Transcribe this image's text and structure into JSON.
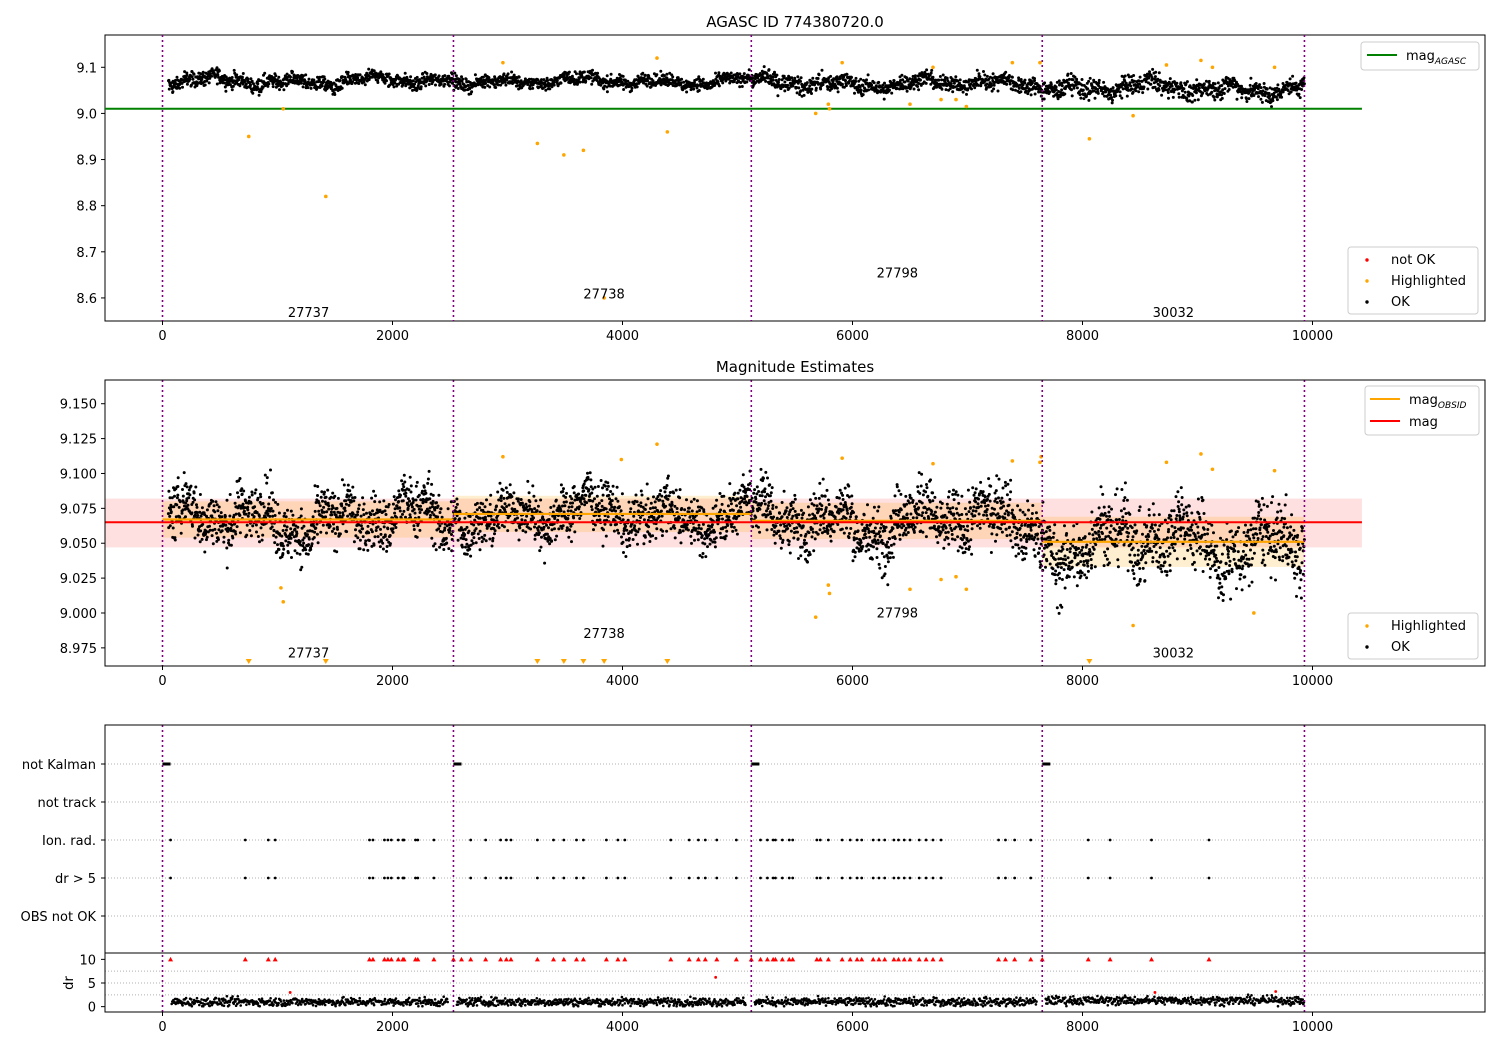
{
  "chart_data": [
    {
      "type": "scatter",
      "title": "AGASC ID 774380720.0",
      "xlim": [
        -500,
        11500
      ],
      "ylim": [
        8.55,
        9.17
      ],
      "xticks": [
        0,
        2000,
        4000,
        6000,
        8000,
        10000
      ],
      "yticks": [
        8.6,
        8.7,
        8.8,
        8.9,
        9.0,
        9.1
      ],
      "obs_boundaries": [
        0,
        2530,
        5120,
        7650,
        9930
      ],
      "obsid_labels": [
        {
          "text": "27737",
          "x": 1270,
          "y": 8.57
        },
        {
          "text": "27738",
          "x": 3840,
          "y": 8.61
        },
        {
          "text": "27798",
          "x": 6390,
          "y": 8.655
        },
        {
          "text": "30032",
          "x": 8790,
          "y": 8.57
        }
      ],
      "lines": [
        {
          "name": "mag",
          "sub": "AGASC",
          "value": 9.01,
          "x": [
            -500,
            10430
          ],
          "color": "#008000"
        }
      ],
      "segments": [
        {
          "x0": 50,
          "x1": 2530,
          "center": 9.07,
          "amp": 0.022
        },
        {
          "x0": 2530,
          "x1": 5120,
          "center": 9.07,
          "amp": 0.02
        },
        {
          "x0": 5120,
          "x1": 7650,
          "center": 9.065,
          "amp": 0.025
        },
        {
          "x0": 7650,
          "x1": 9930,
          "center": 9.055,
          "amp": 0.03
        }
      ],
      "highlighted": [
        [
          750,
          8.95
        ],
        [
          1050,
          9.01
        ],
        [
          1420,
          8.82
        ],
        [
          2960,
          9.11
        ],
        [
          3260,
          8.935
        ],
        [
          3490,
          8.91
        ],
        [
          3660,
          8.92
        ],
        [
          3840,
          8.6
        ],
        [
          4300,
          9.12
        ],
        [
          4390,
          8.96
        ],
        [
          5680,
          9.0
        ],
        [
          5790,
          9.02
        ],
        [
          5800,
          9.01
        ],
        [
          5910,
          9.11
        ],
        [
          6500,
          9.02
        ],
        [
          6700,
          9.1
        ],
        [
          6770,
          9.03
        ],
        [
          6900,
          9.03
        ],
        [
          6990,
          9.015
        ],
        [
          7390,
          9.11
        ],
        [
          7630,
          9.11
        ],
        [
          8060,
          8.945
        ],
        [
          8440,
          8.995
        ],
        [
          8730,
          9.105
        ],
        [
          9030,
          9.115
        ],
        [
          9130,
          9.1
        ],
        [
          9670,
          9.1
        ]
      ],
      "legend": [
        {
          "label": "not OK",
          "color": "#ff0000"
        },
        {
          "label": "Highlighted",
          "color": "#ffa500"
        },
        {
          "label": "OK",
          "color": "#000000"
        }
      ],
      "legend_line_label": "mag",
      "legend_line_sub": "AGASC",
      "legend_placement": "top-right and bottom-right",
      "grid": false
    },
    {
      "type": "scatter",
      "title": "Magnitude Estimates",
      "xlim": [
        -500,
        11500
      ],
      "ylim": [
        8.962,
        9.167
      ],
      "xticks": [
        0,
        2000,
        4000,
        6000,
        8000,
        10000
      ],
      "yticks": [
        8.975,
        9.0,
        9.025,
        9.05,
        9.075,
        9.1,
        9.125,
        9.15
      ],
      "ytick_labels": [
        "8.975",
        "9.000",
        "9.025",
        "9.050",
        "9.075",
        "9.100",
        "9.125",
        "9.150"
      ],
      "obs_boundaries": [
        0,
        2530,
        5120,
        7650,
        9930
      ],
      "obsid_labels": [
        {
          "text": "27737",
          "x": 1270,
          "y": 8.9715
        },
        {
          "text": "27738",
          "x": 3840,
          "y": 8.9855
        },
        {
          "text": "27798",
          "x": 6390,
          "y": 9.0005
        },
        {
          "text": "30032",
          "x": 8790,
          "y": 8.9715
        }
      ],
      "mag": {
        "value": 9.065,
        "band": [
          9.047,
          9.082
        ],
        "x": [
          -500,
          10430
        ],
        "color": "#ff0000"
      },
      "mag_obsid": [
        {
          "x0": 0,
          "x1": 2530,
          "value": 9.067,
          "band": [
            9.054,
            9.08
          ]
        },
        {
          "x0": 2530,
          "x1": 5120,
          "value": 9.071,
          "band": [
            9.058,
            9.084
          ]
        },
        {
          "x0": 5120,
          "x1": 7650,
          "value": 9.066,
          "band": [
            9.053,
            9.079
          ]
        },
        {
          "x0": 7650,
          "x1": 9930,
          "value": 9.051,
          "band": [
            9.033,
            9.069
          ]
        }
      ],
      "segments": [
        {
          "x0": 50,
          "x1": 2530,
          "center": 9.067,
          "amp": 0.028
        },
        {
          "x0": 2530,
          "x1": 5120,
          "center": 9.071,
          "amp": 0.025
        },
        {
          "x0": 5120,
          "x1": 7650,
          "center": 9.066,
          "amp": 0.03
        },
        {
          "x0": 7650,
          "x1": 9930,
          "center": 9.051,
          "amp": 0.035
        }
      ],
      "highlighted": [
        [
          1030,
          9.018
        ],
        [
          1050,
          9.008
        ],
        [
          2960,
          9.112
        ],
        [
          4300,
          9.121
        ],
        [
          3990,
          9.11
        ],
        [
          5680,
          8.997
        ],
        [
          5790,
          9.02
        ],
        [
          5800,
          9.014
        ],
        [
          5910,
          9.111
        ],
        [
          6500,
          9.017
        ],
        [
          6700,
          9.107
        ],
        [
          6770,
          9.024
        ],
        [
          6900,
          9.026
        ],
        [
          6990,
          9.017
        ],
        [
          7390,
          9.109
        ],
        [
          7630,
          9.108
        ],
        [
          7640,
          9.112
        ],
        [
          8440,
          8.991
        ],
        [
          8730,
          9.108
        ],
        [
          9030,
          9.114
        ],
        [
          9130,
          9.103
        ],
        [
          9670,
          9.102
        ],
        [
          9490,
          9.0
        ]
      ],
      "offscale_markers_x": [
        750,
        1420,
        3260,
        3490,
        3660,
        3840,
        4390,
        8060
      ],
      "legend": [
        {
          "label": "Highlighted",
          "color": "#ffa500"
        },
        {
          "label": "OK",
          "color": "#000000"
        }
      ],
      "legend_lines": [
        {
          "label": "mag",
          "sub": "OBSID",
          "color": "#ffa500"
        },
        {
          "label": "mag",
          "sub": "",
          "color": "#ff0000"
        }
      ],
      "grid": false
    },
    {
      "type": "scatter",
      "xlim": [
        -500,
        11500
      ],
      "xticks": [
        0,
        2000,
        4000,
        6000,
        8000,
        10000
      ],
      "flag_rows": [
        "not Kalman",
        "not track",
        "Ion. rad.",
        "dr > 5",
        "OBS not OK"
      ],
      "obs_boundaries": [
        0,
        2530,
        5120,
        7650,
        9930
      ],
      "not_kalman_x": [
        [
          0,
          70
        ],
        [
          2530,
          2600
        ],
        [
          5120,
          5190
        ],
        [
          7650,
          7720
        ]
      ],
      "flag_x": [
        70,
        720,
        920,
        980,
        1800,
        1830,
        1930,
        1960,
        1990,
        2050,
        2090,
        2100,
        2200,
        2220,
        2360,
        2680,
        2810,
        2940,
        2990,
        3030,
        3260,
        3400,
        3490,
        3600,
        3660,
        3860,
        3960,
        4020,
        4420,
        4580,
        4660,
        4720,
        4820,
        4990,
        5200,
        5260,
        5310,
        5330,
        5390,
        5450,
        5480,
        5690,
        5720,
        5790,
        5910,
        5980,
        6040,
        6080,
        6180,
        6230,
        6280,
        6360,
        6400,
        6450,
        6500,
        6580,
        6640,
        6700,
        6770,
        7270,
        7330,
        7410,
        7550,
        8050,
        8240,
        8600,
        9100
      ],
      "dr": {
        "ylabel": "dr",
        "ylim": [
          -0.5,
          10.5
        ],
        "yticks": [
          0,
          5,
          10
        ],
        "red_x": [
          70,
          720,
          920,
          980,
          1800,
          1830,
          1930,
          1960,
          1990,
          2050,
          2090,
          2100,
          2200,
          2220,
          2360,
          2530,
          2600,
          2680,
          2810,
          2940,
          2990,
          3030,
          3260,
          3400,
          3490,
          3600,
          3660,
          3860,
          3960,
          4020,
          4420,
          4580,
          4660,
          4720,
          4820,
          4990,
          5120,
          5200,
          5260,
          5310,
          5330,
          5390,
          5450,
          5480,
          5690,
          5720,
          5790,
          5910,
          5980,
          6040,
          6080,
          6180,
          6230,
          6280,
          6360,
          6400,
          6450,
          6500,
          6580,
          6640,
          6700,
          6770,
          7270,
          7330,
          7410,
          7550,
          7650,
          8050,
          8240,
          8600,
          9100
        ],
        "red_mid": [
          [
            1110,
            3.0
          ],
          [
            4810,
            6.2
          ],
          [
            8630,
            3.0
          ],
          [
            9680,
            3.2
          ]
        ],
        "baseline": 1.0
      },
      "grid": true
    }
  ]
}
